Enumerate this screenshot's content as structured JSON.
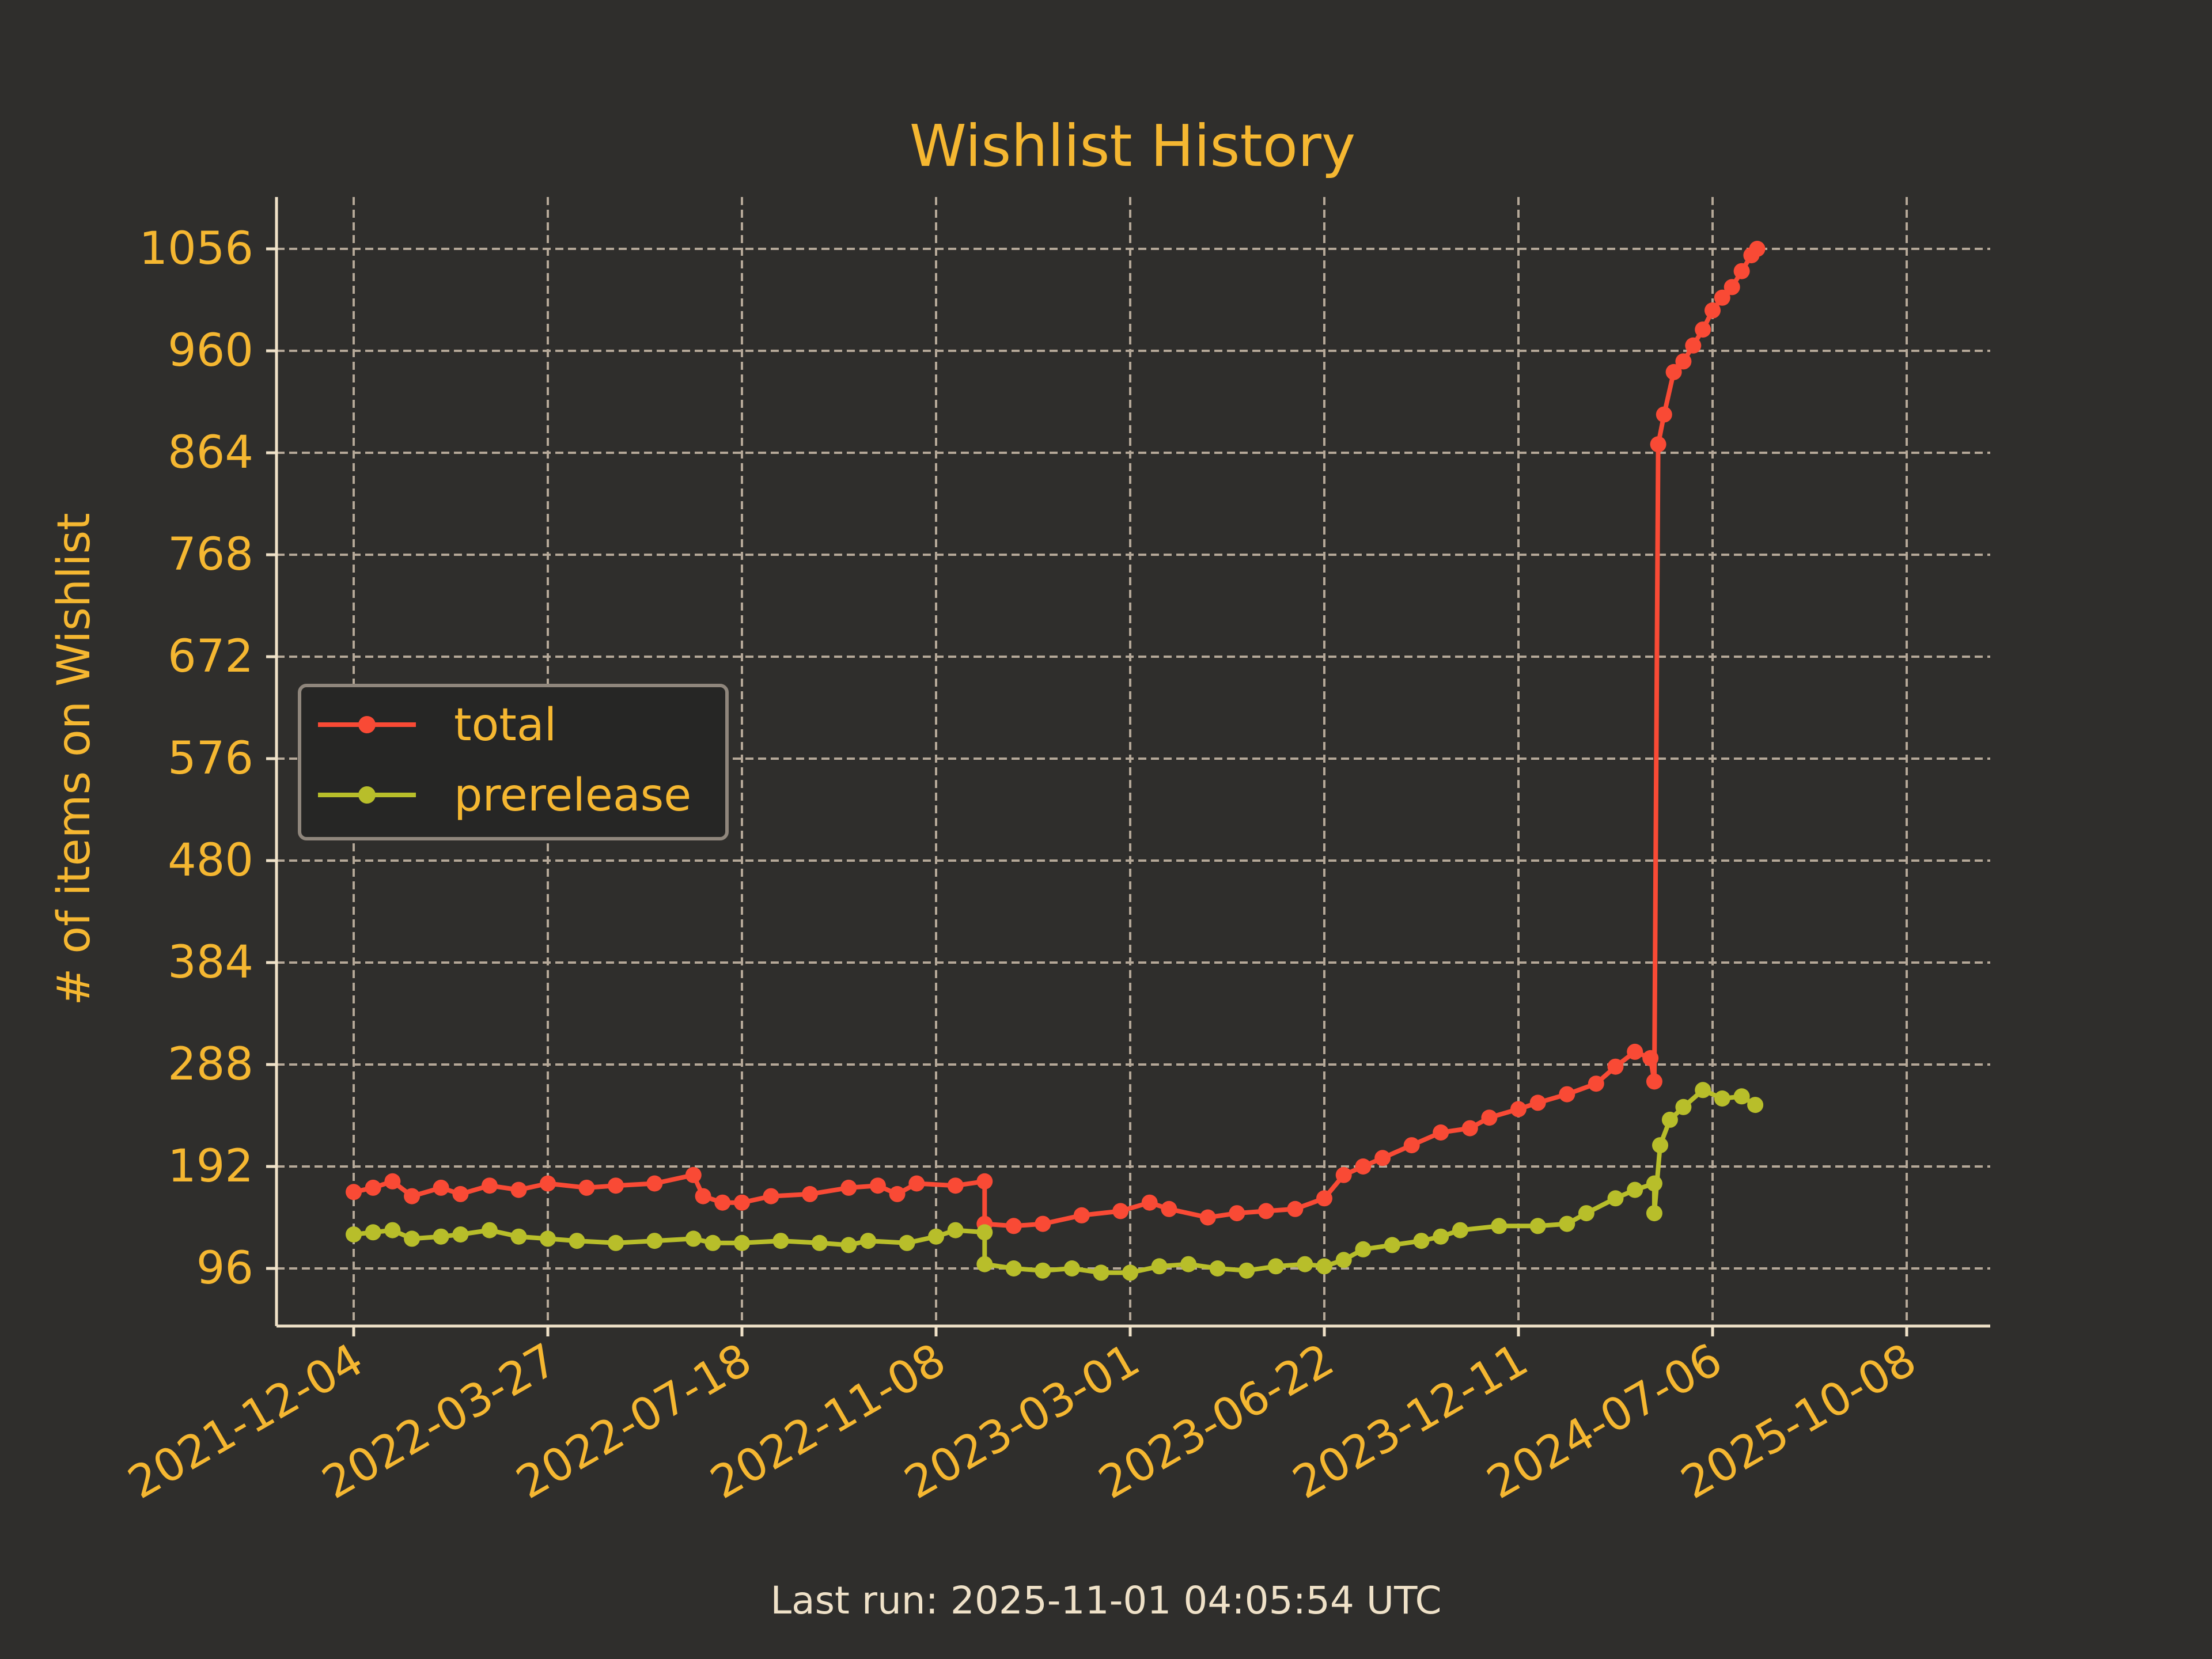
{
  "footer": {
    "last_run": "Last run: 2025-11-01 04:05:54 UTC"
  },
  "colors": {
    "background": "#2f2e2c",
    "axis": "#efe1c8",
    "grid": "#b5a898",
    "text": "#f5b731",
    "total": "#f94a35",
    "prerelease": "#b8be2a",
    "legend_bg": "#262625",
    "legend_border": "#8f867c"
  },
  "chart_data": {
    "type": "line",
    "title": "Wishlist History",
    "xlabel": "",
    "ylabel": "# of items on Wishlist",
    "x_ticks": [
      "2021-12-04",
      "2022-03-27",
      "2022-07-18",
      "2022-11-08",
      "2023-03-01",
      "2023-06-22",
      "2023-12-11",
      "2024-07-06",
      "2025-10-08"
    ],
    "y_ticks": [
      96,
      192,
      288,
      384,
      480,
      576,
      672,
      768,
      864,
      960,
      1056
    ],
    "ylim": [
      42,
      1088
    ],
    "grid": true,
    "legend_position": "center-left",
    "series": [
      {
        "name": "total",
        "color": "#f94a35",
        "points": [
          [
            0,
            168
          ],
          [
            0.1,
            172
          ],
          [
            0.2,
            178
          ],
          [
            0.3,
            164
          ],
          [
            0.45,
            172
          ],
          [
            0.55,
            166
          ],
          [
            0.7,
            174
          ],
          [
            0.85,
            170
          ],
          [
            1.0,
            176
          ],
          [
            1.2,
            172
          ],
          [
            1.35,
            174
          ],
          [
            1.55,
            176
          ],
          [
            1.75,
            184
          ],
          [
            1.8,
            164
          ],
          [
            1.9,
            158
          ],
          [
            2.0,
            158
          ],
          [
            2.15,
            164
          ],
          [
            2.35,
            166
          ],
          [
            2.55,
            172
          ],
          [
            2.7,
            174
          ],
          [
            2.8,
            166
          ],
          [
            2.9,
            176
          ],
          [
            3.1,
            174
          ],
          [
            3.25,
            178
          ],
          [
            3.25,
            138
          ],
          [
            3.4,
            136
          ],
          [
            3.55,
            138
          ],
          [
            3.75,
            146
          ],
          [
            3.95,
            150
          ],
          [
            4.1,
            158
          ],
          [
            4.2,
            152
          ],
          [
            4.4,
            144
          ],
          [
            4.55,
            148
          ],
          [
            4.7,
            150
          ],
          [
            4.85,
            152
          ],
          [
            5.0,
            162
          ],
          [
            5.1,
            184
          ],
          [
            5.2,
            192
          ],
          [
            5.3,
            200
          ],
          [
            5.45,
            212
          ],
          [
            5.6,
            224
          ],
          [
            5.75,
            228
          ],
          [
            5.85,
            238
          ],
          [
            6.0,
            246
          ],
          [
            6.1,
            252
          ],
          [
            6.25,
            260
          ],
          [
            6.4,
            270
          ],
          [
            6.5,
            286
          ],
          [
            6.6,
            300
          ],
          [
            6.68,
            294
          ],
          [
            6.7,
            272
          ],
          [
            6.72,
            872
          ],
          [
            6.75,
            900
          ],
          [
            6.8,
            940
          ],
          [
            6.85,
            950
          ],
          [
            6.9,
            965
          ],
          [
            6.95,
            980
          ],
          [
            7.0,
            998
          ],
          [
            7.05,
            1010
          ],
          [
            7.1,
            1020
          ],
          [
            7.15,
            1035
          ],
          [
            7.2,
            1050
          ],
          [
            7.23,
            1056
          ]
        ]
      },
      {
        "name": "prerelease",
        "color": "#b8be2a",
        "points": [
          [
            0,
            128
          ],
          [
            0.1,
            130
          ],
          [
            0.2,
            132
          ],
          [
            0.3,
            124
          ],
          [
            0.45,
            126
          ],
          [
            0.55,
            128
          ],
          [
            0.7,
            132
          ],
          [
            0.85,
            126
          ],
          [
            1.0,
            124
          ],
          [
            1.15,
            122
          ],
          [
            1.35,
            120
          ],
          [
            1.55,
            122
          ],
          [
            1.75,
            124
          ],
          [
            1.85,
            120
          ],
          [
            2.0,
            120
          ],
          [
            2.2,
            122
          ],
          [
            2.4,
            120
          ],
          [
            2.55,
            118
          ],
          [
            2.65,
            122
          ],
          [
            2.85,
            120
          ],
          [
            3.0,
            126
          ],
          [
            3.1,
            132
          ],
          [
            3.25,
            130
          ],
          [
            3.25,
            100
          ],
          [
            3.4,
            96
          ],
          [
            3.55,
            94
          ],
          [
            3.7,
            96
          ],
          [
            3.85,
            92
          ],
          [
            4.0,
            92
          ],
          [
            4.15,
            98
          ],
          [
            4.3,
            100
          ],
          [
            4.45,
            96
          ],
          [
            4.6,
            94
          ],
          [
            4.75,
            98
          ],
          [
            4.9,
            100
          ],
          [
            5.0,
            98
          ],
          [
            5.1,
            104
          ],
          [
            5.2,
            114
          ],
          [
            5.35,
            118
          ],
          [
            5.5,
            122
          ],
          [
            5.6,
            126
          ],
          [
            5.7,
            132
          ],
          [
            5.9,
            136
          ],
          [
            6.1,
            136
          ],
          [
            6.25,
            138
          ],
          [
            6.35,
            148
          ],
          [
            6.5,
            162
          ],
          [
            6.6,
            170
          ],
          [
            6.7,
            176
          ],
          [
            6.7,
            148
          ],
          [
            6.73,
            212
          ],
          [
            6.78,
            236
          ],
          [
            6.85,
            248
          ],
          [
            6.95,
            264
          ],
          [
            7.05,
            256
          ],
          [
            7.15,
            258
          ],
          [
            7.22,
            250
          ]
        ]
      }
    ]
  }
}
